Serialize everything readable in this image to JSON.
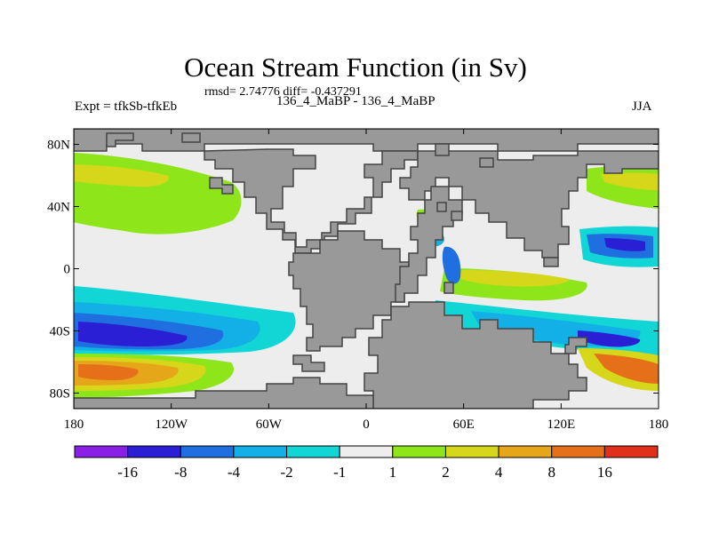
{
  "chart_data": {
    "type": "heatmap",
    "title": "Ocean Stream Function (in Sv)",
    "stats_text": "rmsd= 2.74776 diff= -0.437291",
    "left_label": "Expt = tfkSb-tfkEb",
    "center_label": "136_4_MaBP - 136_4_MaBP",
    "right_label": "JJA",
    "x_ticks": [
      "180",
      "120W",
      "60W",
      "0",
      "60E",
      "120E",
      "180"
    ],
    "y_ticks": [
      "80N",
      "40N",
      "0",
      "40S",
      "80S"
    ],
    "xlim": [
      -180,
      180
    ],
    "ylim": [
      -90,
      90
    ],
    "colorbar": {
      "labels": [
        "-16",
        "-8",
        "-4",
        "-2",
        "-1",
        "1",
        "2",
        "4",
        "8",
        "16"
      ],
      "colors": [
        "#8a1fe6",
        "#2b1fd6",
        "#1f6fe0",
        "#12b0e6",
        "#12d6d6",
        "#eeeeee",
        "#8ee61a",
        "#d6d61a",
        "#e6a61a",
        "#e6701a",
        "#e0301a"
      ]
    },
    "land_color": "#999999"
  }
}
